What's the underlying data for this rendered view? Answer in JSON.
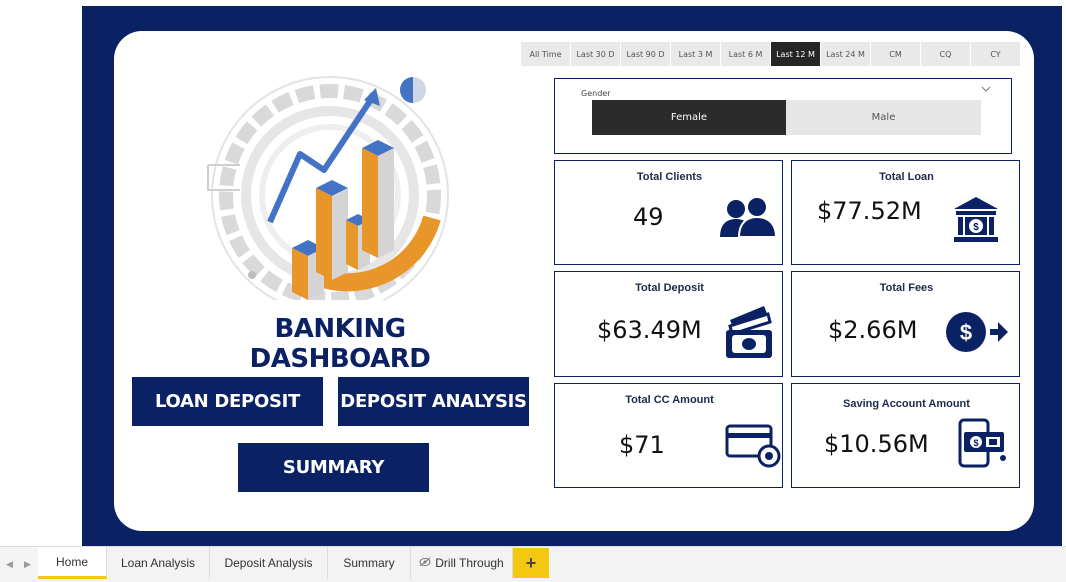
{
  "date_slicer": {
    "options": [
      "All Time",
      "Last 30 D",
      "Last 90 D",
      "Last 3 M",
      "Last 6 M",
      "Last 12 M",
      "Last 24 M",
      "CM",
      "CQ",
      "CY"
    ],
    "selected": "Last 12 M"
  },
  "gender_filter": {
    "label": "Gender",
    "options": [
      "Female",
      "Male"
    ],
    "selected": "Female"
  },
  "dashboard": {
    "title": "BANKING DASHBOARD"
  },
  "nav_buttons": {
    "loan_deposit": "LOAN DEPOSIT",
    "deposit_analysis": "DEPOSIT ANALYSIS",
    "summary": "SUMMARY"
  },
  "kpis": {
    "total_clients": {
      "title": "Total Clients",
      "value": "49",
      "icon": "people-icon"
    },
    "total_loan": {
      "title": "Total Loan",
      "value": "$77.52M",
      "icon": "bank-icon"
    },
    "total_deposit": {
      "title": "Total Deposit",
      "value": "$63.49M",
      "icon": "cash-deposit-icon"
    },
    "total_fees": {
      "title": "Total Fees",
      "value": "$2.66M",
      "icon": "dollar-transfer-icon"
    },
    "total_cc_amount": {
      "title": "Total CC Amount",
      "value": "$71",
      "icon": "credit-card-icon"
    },
    "saving_account_amount": {
      "title": "Saving Account Amount",
      "value": "$10.56M",
      "icon": "mobile-payment-icon"
    }
  },
  "page_tabs": {
    "tabs": [
      "Home",
      "Loan Analysis",
      "Deposit Analysis",
      "Summary",
      "Drill Through"
    ],
    "active": "Home",
    "add_label": "+"
  },
  "colors": {
    "navy": "#0a2163",
    "accent_orange": "#e8962a",
    "accent_blue": "#4472c4",
    "tab_highlight": "#f2c811"
  }
}
